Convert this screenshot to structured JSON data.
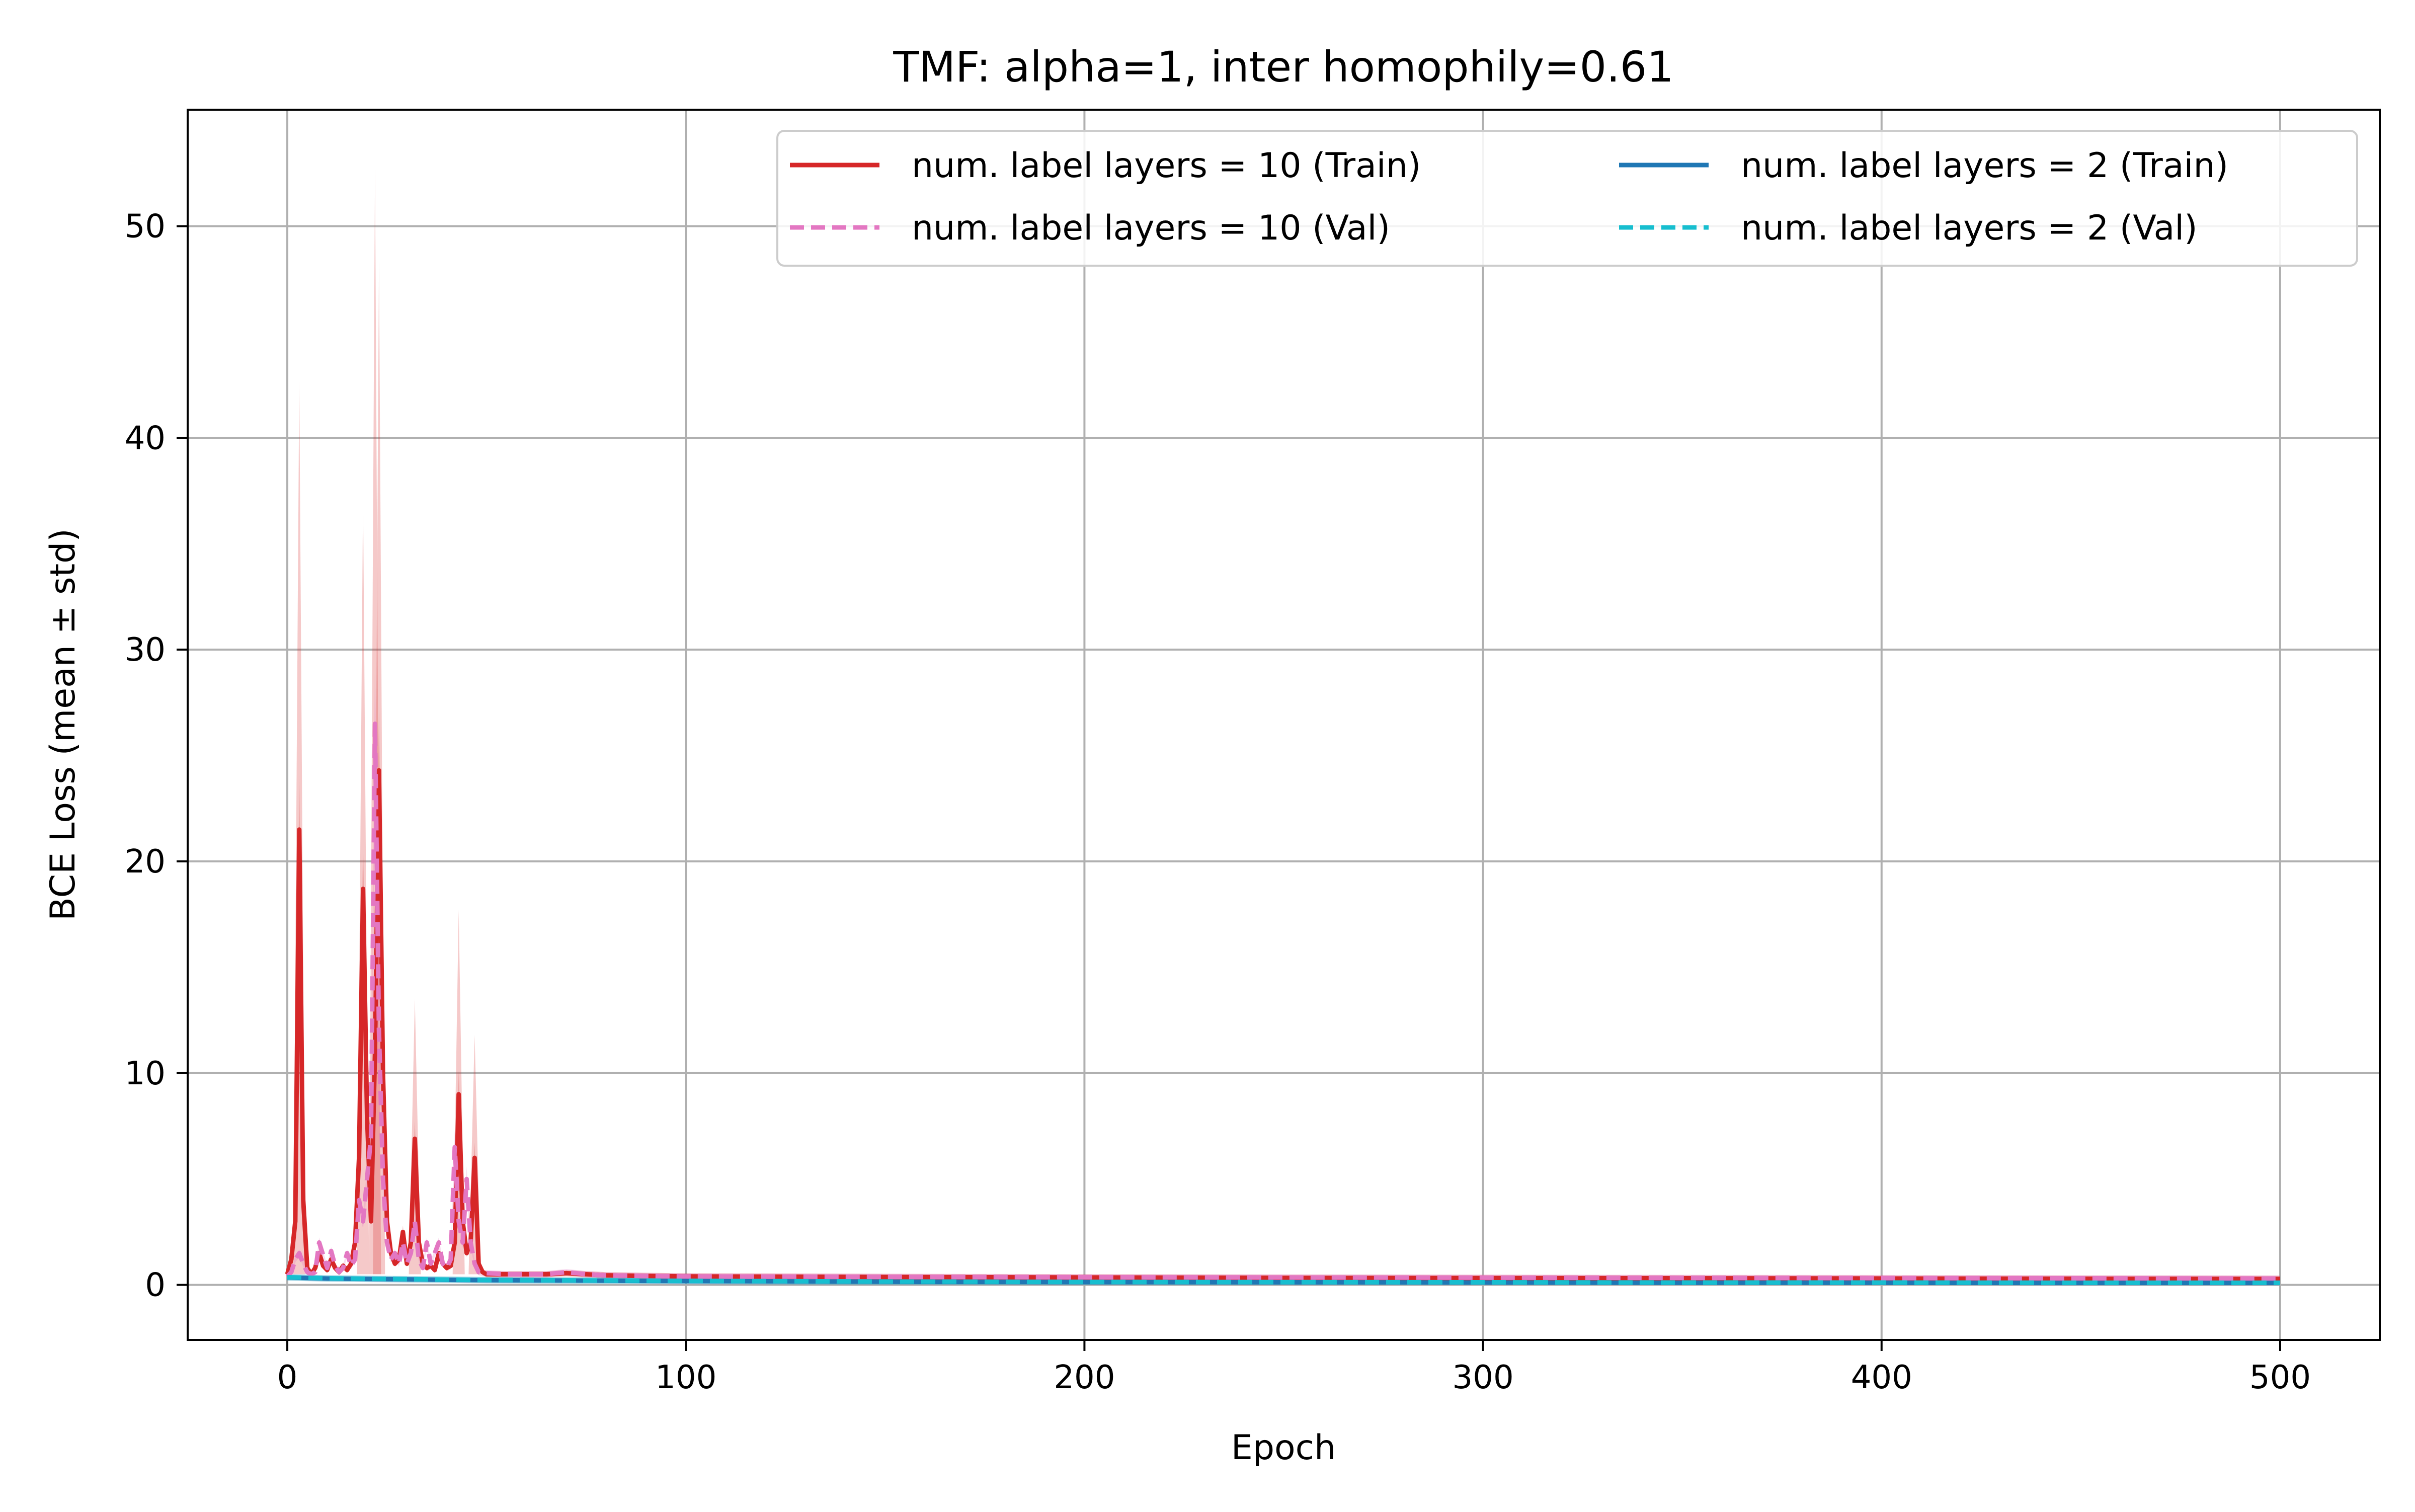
{
  "chart_data": {
    "type": "line",
    "title": "TMF: alpha=1, inter homophily=0.61",
    "xlabel": "Epoch",
    "ylabel": "BCE Loss (mean ± std)",
    "xlim": [
      -25,
      525
    ],
    "ylim": [
      -2.6,
      55.5
    ],
    "xticks": [
      0,
      100,
      200,
      300,
      400,
      500
    ],
    "yticks": [
      0,
      10,
      20,
      30,
      40,
      50
    ],
    "grid": true,
    "legend_position": "top-right",
    "legend_columns": 2,
    "series": [
      {
        "name": "num. label layers = 10 (Train)",
        "color": "#d62728",
        "dash": "solid",
        "band_alpha": 0.25,
        "points": [
          [
            0,
            0.5
          ],
          [
            1,
            1.2
          ],
          [
            2,
            3.0
          ],
          [
            3,
            21.5
          ],
          [
            4,
            4.0
          ],
          [
            5,
            0.8
          ],
          [
            6,
            0.5
          ],
          [
            7,
            0.8
          ],
          [
            8,
            1.5
          ],
          [
            9,
            0.9
          ],
          [
            10,
            0.7
          ],
          [
            11,
            1.2
          ],
          [
            12,
            0.8
          ],
          [
            13,
            0.6
          ],
          [
            14,
            0.9
          ],
          [
            15,
            0.7
          ],
          [
            16,
            1.0
          ],
          [
            17,
            2.0
          ],
          [
            18,
            6.0
          ],
          [
            19,
            18.7
          ],
          [
            20,
            8.0
          ],
          [
            21,
            3.0
          ],
          [
            22,
            11.0
          ],
          [
            23,
            24.3
          ],
          [
            24,
            10.0
          ],
          [
            25,
            3.0
          ],
          [
            26,
            1.5
          ],
          [
            27,
            1.0
          ],
          [
            28,
            1.2
          ],
          [
            29,
            2.5
          ],
          [
            30,
            1.0
          ],
          [
            31,
            2.0
          ],
          [
            32,
            6.9
          ],
          [
            33,
            2.0
          ],
          [
            34,
            1.0
          ],
          [
            35,
            0.8
          ],
          [
            36,
            0.9
          ],
          [
            37,
            0.7
          ],
          [
            38,
            1.5
          ],
          [
            39,
            1.0
          ],
          [
            40,
            0.8
          ],
          [
            41,
            0.9
          ],
          [
            42,
            2.0
          ],
          [
            43,
            9.0
          ],
          [
            44,
            3.0
          ],
          [
            45,
            1.5
          ],
          [
            46,
            2.0
          ],
          [
            47,
            6.0
          ],
          [
            48,
            1.0
          ],
          [
            49,
            0.6
          ],
          [
            50,
            0.5
          ],
          [
            55,
            0.5
          ],
          [
            60,
            0.5
          ],
          [
            65,
            0.5
          ],
          [
            70,
            0.55
          ],
          [
            75,
            0.5
          ],
          [
            80,
            0.45
          ],
          [
            90,
            0.42
          ],
          [
            100,
            0.4
          ],
          [
            150,
            0.37
          ],
          [
            200,
            0.35
          ],
          [
            250,
            0.33
          ],
          [
            300,
            0.32
          ],
          [
            350,
            0.31
          ],
          [
            400,
            0.3
          ],
          [
            450,
            0.29
          ],
          [
            500,
            0.28
          ]
        ],
        "band": [
          [
            3,
            42.7
          ],
          [
            19,
            37.2
          ],
          [
            22,
            52.8
          ],
          [
            23,
            48.4
          ],
          [
            32,
            13.5
          ],
          [
            43,
            17.7
          ],
          [
            47,
            11.8
          ]
        ]
      },
      {
        "name": "num. label layers = 10 (Val)",
        "color": "#e377c2",
        "dash": "dashed",
        "band_alpha": 0.25,
        "points": [
          [
            0,
            0.4
          ],
          [
            1,
            0.6
          ],
          [
            2,
            1.2
          ],
          [
            3,
            1.5
          ],
          [
            4,
            1.0
          ],
          [
            5,
            0.6
          ],
          [
            6,
            0.5
          ],
          [
            7,
            0.6
          ],
          [
            8,
            2.0
          ],
          [
            9,
            1.4
          ],
          [
            10,
            0.8
          ],
          [
            11,
            1.6
          ],
          [
            12,
            0.9
          ],
          [
            13,
            0.6
          ],
          [
            14,
            0.8
          ],
          [
            15,
            1.5
          ],
          [
            16,
            0.9
          ],
          [
            17,
            1.2
          ],
          [
            18,
            4.0
          ],
          [
            19,
            3.0
          ],
          [
            20,
            5.0
          ],
          [
            21,
            7.0
          ],
          [
            22,
            26.5
          ],
          [
            23,
            12.0
          ],
          [
            24,
            5.0
          ],
          [
            25,
            2.0
          ],
          [
            26,
            1.2
          ],
          [
            27,
            1.5
          ],
          [
            28,
            1.0
          ],
          [
            29,
            2.0
          ],
          [
            30,
            1.0
          ],
          [
            31,
            1.5
          ],
          [
            32,
            3.0
          ],
          [
            33,
            1.2
          ],
          [
            34,
            0.8
          ],
          [
            35,
            2.0
          ],
          [
            36,
            1.0
          ],
          [
            37,
            1.5
          ],
          [
            38,
            2.0
          ],
          [
            39,
            1.0
          ],
          [
            40,
            0.8
          ],
          [
            41,
            1.2
          ],
          [
            42,
            6.5
          ],
          [
            43,
            3.0
          ],
          [
            44,
            2.0
          ],
          [
            45,
            5.0
          ],
          [
            46,
            2.0
          ],
          [
            47,
            1.0
          ],
          [
            48,
            0.6
          ],
          [
            49,
            0.55
          ],
          [
            50,
            0.55
          ],
          [
            55,
            0.5
          ],
          [
            60,
            0.5
          ],
          [
            65,
            0.5
          ],
          [
            70,
            0.6
          ],
          [
            75,
            0.5
          ],
          [
            80,
            0.45
          ],
          [
            90,
            0.42
          ],
          [
            100,
            0.4
          ],
          [
            150,
            0.38
          ],
          [
            200,
            0.36
          ],
          [
            250,
            0.35
          ],
          [
            300,
            0.34
          ],
          [
            350,
            0.33
          ],
          [
            400,
            0.32
          ],
          [
            450,
            0.31
          ],
          [
            500,
            0.3
          ]
        ]
      },
      {
        "name": "num. label layers = 2 (Train)",
        "color": "#1f77b4",
        "dash": "solid",
        "band_alpha": 0.25,
        "points": [
          [
            0,
            0.35
          ],
          [
            10,
            0.3
          ],
          [
            20,
            0.28
          ],
          [
            30,
            0.26
          ],
          [
            40,
            0.24
          ],
          [
            50,
            0.22
          ],
          [
            100,
            0.18
          ],
          [
            150,
            0.15
          ],
          [
            200,
            0.13
          ],
          [
            250,
            0.12
          ],
          [
            300,
            0.11
          ],
          [
            350,
            0.1
          ],
          [
            400,
            0.1
          ],
          [
            450,
            0.09
          ],
          [
            500,
            0.09
          ]
        ]
      },
      {
        "name": "num. label layers = 2 (Val)",
        "color": "#17becf",
        "dash": "dashed",
        "band_alpha": 0.25,
        "points": [
          [
            0,
            0.36
          ],
          [
            10,
            0.31
          ],
          [
            20,
            0.29
          ],
          [
            30,
            0.27
          ],
          [
            40,
            0.25
          ],
          [
            50,
            0.23
          ],
          [
            100,
            0.19
          ],
          [
            150,
            0.16
          ],
          [
            200,
            0.14
          ],
          [
            250,
            0.13
          ],
          [
            300,
            0.12
          ],
          [
            350,
            0.11
          ],
          [
            400,
            0.11
          ],
          [
            450,
            0.1
          ],
          [
            500,
            0.1
          ]
        ]
      }
    ]
  }
}
